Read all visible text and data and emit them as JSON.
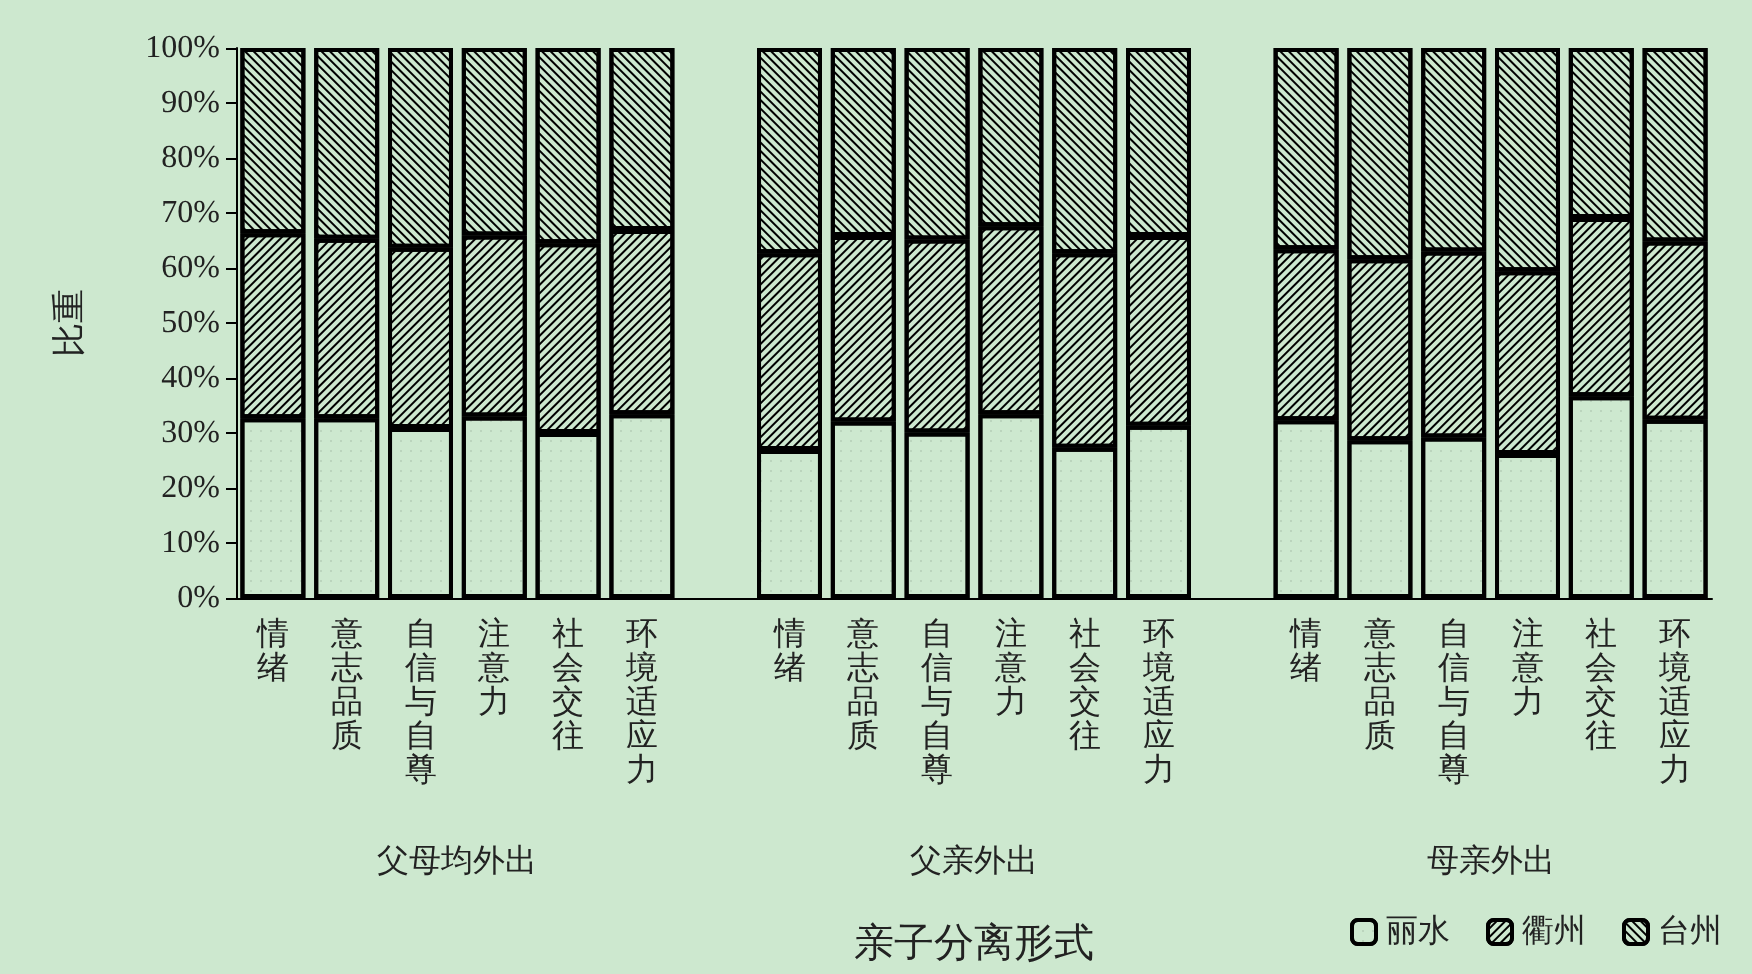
{
  "chart_data": {
    "type": "bar",
    "stacked": true,
    "xlabel": "亲子分离形式",
    "ylabel": "比重",
    "categories": [
      "情绪",
      "意志品质",
      "自信与自尊",
      "注意力",
      "社会交往",
      "环境适应力",
      null,
      "情绪",
      "意志品质",
      "自信与自尊",
      "注意力",
      "社会交往",
      "环境适应力",
      null,
      "情绪",
      "意志品质",
      "自信与自尊",
      "注意力",
      "社会交往",
      "环境适应力"
    ],
    "annotations": [
      "父母均外出",
      "父亲外出",
      "母亲外出"
    ],
    "series": [
      {
        "name": "丽水",
        "color": "#cde8cf",
        "values": [
          32.7,
          32.7,
          30.9,
          33.0,
          30.0,
          33.4,
          null,
          26.9,
          32.1,
          30.1,
          33.4,
          27.3,
          31.3,
          null,
          32.3,
          28.7,
          29.2,
          26.2,
          36.7,
          32.4
        ]
      },
      {
        "name": "衢州",
        "color": "#cde8cf",
        "values": [
          33.6,
          32.6,
          32.8,
          32.9,
          34.5,
          33.5,
          null,
          35.8,
          33.7,
          35.1,
          34.2,
          35.4,
          34.5,
          null,
          31.1,
          32.9,
          33.8,
          33.2,
          32.4,
          32.4
        ]
      },
      {
        "name": "台州",
        "color": "#cde8cf",
        "values": [
          33.7,
          34.7,
          36.3,
          34.1,
          35.5,
          33.1,
          null,
          37.3,
          34.2,
          34.8,
          32.4,
          37.3,
          34.2,
          null,
          36.6,
          38.4,
          37.0,
          40.6,
          30.9,
          35.2
        ]
      }
    ],
    "ylim": [
      0,
      100
    ],
    "yticks": [
      {
        "value": 0,
        "label": "0%"
      },
      {
        "value": 10,
        "label": "10%"
      },
      {
        "value": 20,
        "label": "20%"
      },
      {
        "value": 30,
        "label": "30%"
      },
      {
        "value": 40,
        "label": "40%"
      },
      {
        "value": 50,
        "label": "50%"
      },
      {
        "value": 60,
        "label": "60%"
      },
      {
        "value": 70,
        "label": "70%"
      },
      {
        "value": 80,
        "label": "80%"
      },
      {
        "value": 90,
        "label": "90%"
      },
      {
        "value": 100,
        "label": "100%"
      }
    ],
    "grid": false,
    "legend": "bottom right"
  }
}
